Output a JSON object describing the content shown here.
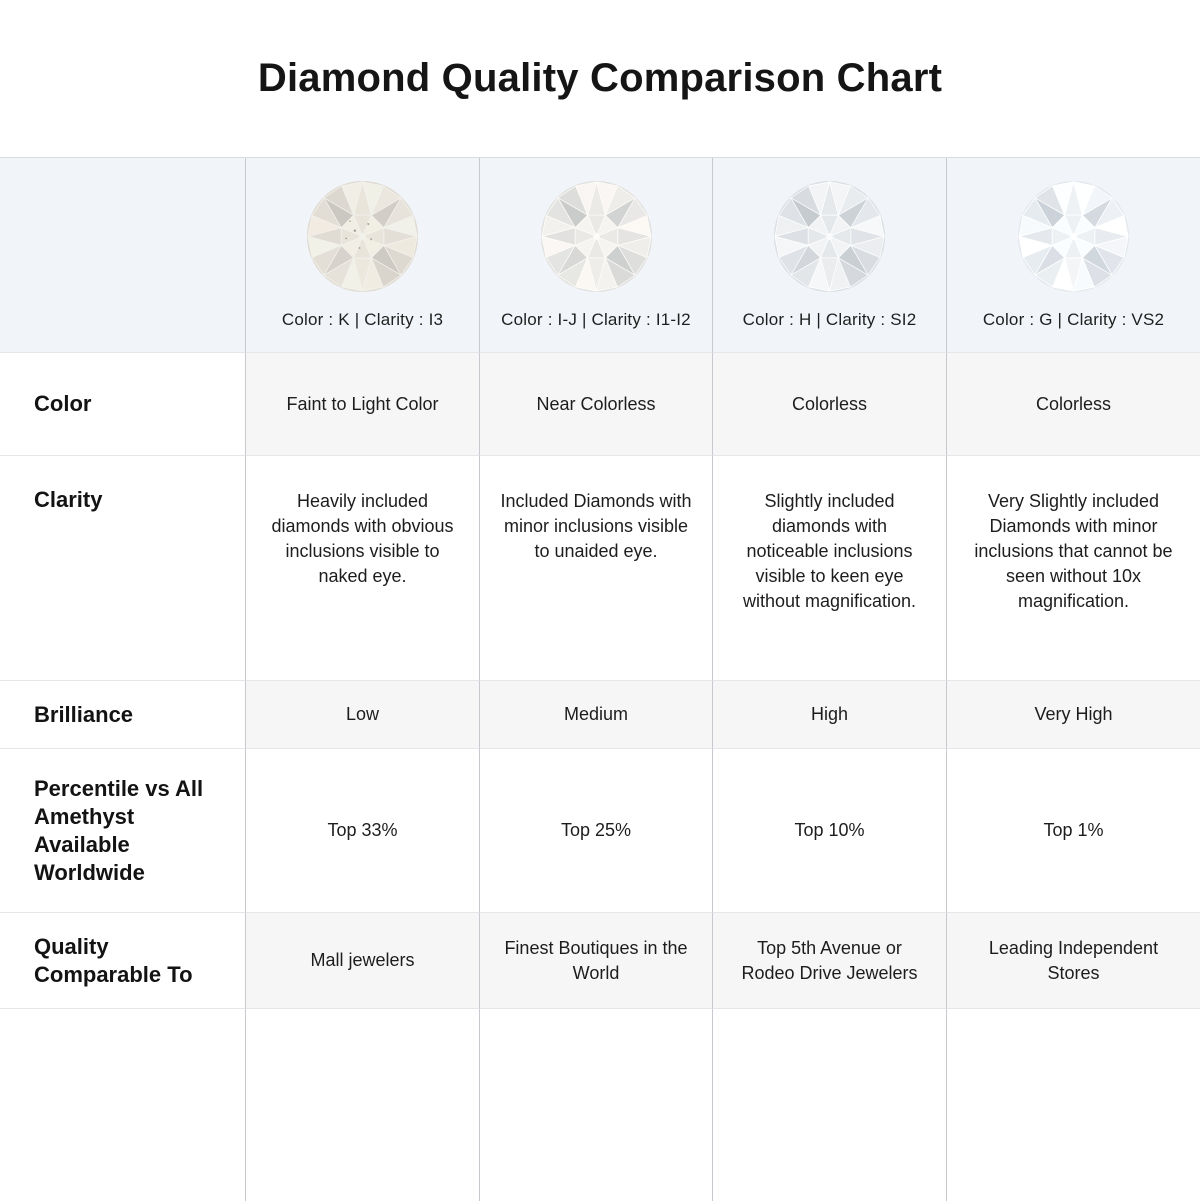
{
  "title": "Diamond Quality Comparison Chart",
  "chart_data": {
    "type": "table",
    "title": "Diamond Quality Comparison Chart",
    "column_headers": [
      "Color : K | Clarity : I3",
      "Color : I-J | Clarity : I1-I2",
      "Color : H | Clarity : SI2",
      "Color : G | Clarity : VS2"
    ],
    "column_icons": [
      "diamond-photo",
      "diamond-photo",
      "diamond-photo",
      "diamond-photo"
    ],
    "rows": [
      {
        "label": "Color",
        "values": [
          "Faint to Light Color",
          "Near Colorless",
          "Colorless",
          "Colorless"
        ]
      },
      {
        "label": "Clarity",
        "values": [
          "Heavily included diamonds with obvious inclusions visible to naked eye.",
          "Included Diamonds with minor inclusions visible to unaided eye.",
          "Slightly included diamonds with noticeable inclusions visible to keen eye without magnification.",
          "Very Slightly included Diamonds with minor inclusions that cannot be seen without 10x magnification."
        ]
      },
      {
        "label": "Brilliance",
        "values": [
          "Low",
          "Medium",
          "High",
          "Very High"
        ]
      },
      {
        "label": "Percentile vs All Amethyst Available Worldwide",
        "values": [
          "Top 33%",
          "Top 25%",
          "Top 10%",
          "Top 1%"
        ]
      },
      {
        "label": "Quality Comparable To",
        "values": [
          "Mall jewelers",
          "Finest Boutiques in the World",
          "Top 5th Avenue or Rodeo Drive Jewelers",
          "Leading Independent Stores"
        ]
      }
    ],
    "colors": {
      "header_bg": "#f1f5fa",
      "stripe_bg": "#f6f6f7",
      "grid_vertical": "#c6cace",
      "grid_horizontal": "#e4e6e9",
      "text": "#1d1d1d"
    }
  }
}
